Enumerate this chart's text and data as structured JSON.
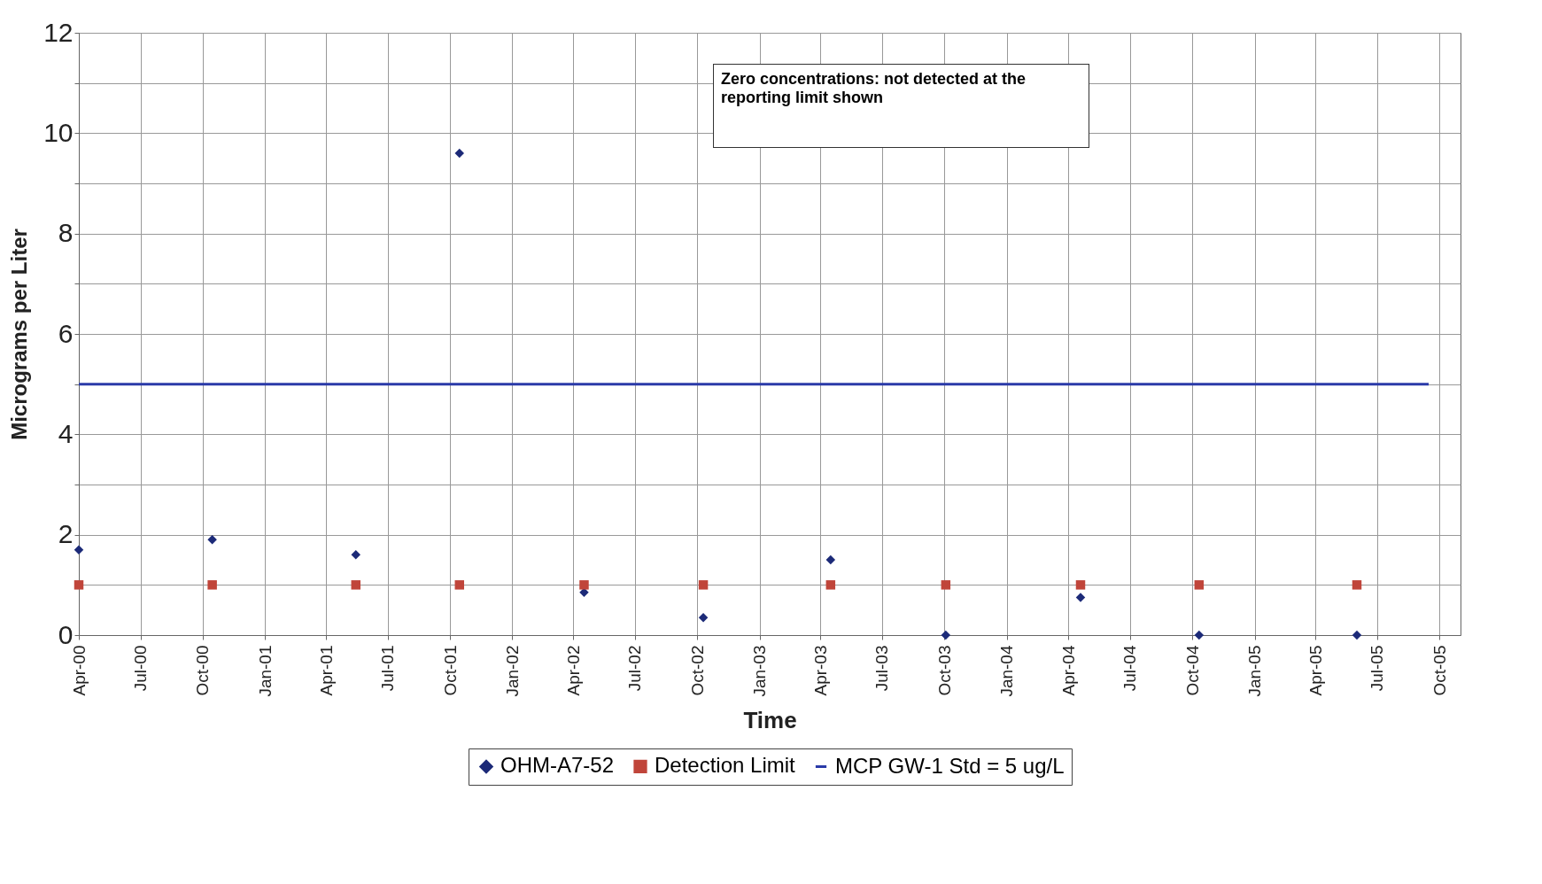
{
  "chart_data": {
    "type": "scatter",
    "xlabel": "Time",
    "ylabel": "Micrograms per Liter",
    "annotations": [
      "Zero concentrations: not detected at the reporting limit shown"
    ],
    "x": [
      "2000-04-01",
      "2000-10-15",
      "2001-05-15",
      "2001-10-15",
      "2002-04-17",
      "2002-10-10",
      "2003-04-16",
      "2003-10-03",
      "2004-04-19",
      "2004-10-11",
      "2005-06-01"
    ],
    "series": [
      {
        "name": "OHM-A7-52",
        "color": "#1c2a78",
        "marker": "diamond",
        "values": [
          1.7,
          1.9,
          1.6,
          9.6,
          0.85,
          0.35,
          1.5,
          0,
          0.75,
          0,
          0
        ]
      },
      {
        "name": "Detection Limit",
        "color": "#c0453a",
        "marker": "square",
        "values": [
          1,
          1,
          1,
          1,
          1,
          1,
          1,
          1,
          1,
          1,
          1
        ]
      },
      {
        "name": "MCP GW-1 Std = 5 ug/L",
        "type": "line",
        "color": "#2a3aa8",
        "marker": "none",
        "x": [
          "2000-04-01",
          "2005-09-15"
        ],
        "values": [
          5,
          5
        ]
      }
    ],
    "xlim": [
      "2000-04-01",
      "2005-11-01"
    ],
    "xticks": [
      {
        "value": "2000-04-01",
        "label": "Apr-00"
      },
      {
        "value": "2000-07-01",
        "label": "Jul-00"
      },
      {
        "value": "2000-10-01",
        "label": "Oct-00"
      },
      {
        "value": "2001-01-01",
        "label": "Jan-01"
      },
      {
        "value": "2001-04-01",
        "label": "Apr-01"
      },
      {
        "value": "2001-07-01",
        "label": "Jul-01"
      },
      {
        "value": "2001-10-01",
        "label": "Oct-01"
      },
      {
        "value": "2002-01-01",
        "label": "Jan-02"
      },
      {
        "value": "2002-04-01",
        "label": "Apr-02"
      },
      {
        "value": "2002-07-01",
        "label": "Jul-02"
      },
      {
        "value": "2002-10-01",
        "label": "Oct-02"
      },
      {
        "value": "2003-01-01",
        "label": "Jan-03"
      },
      {
        "value": "2003-04-01",
        "label": "Apr-03"
      },
      {
        "value": "2003-07-01",
        "label": "Jul-03"
      },
      {
        "value": "2003-10-01",
        "label": "Oct-03"
      },
      {
        "value": "2004-01-01",
        "label": "Jan-04"
      },
      {
        "value": "2004-04-01",
        "label": "Apr-04"
      },
      {
        "value": "2004-07-01",
        "label": "Jul-04"
      },
      {
        "value": "2004-10-01",
        "label": "Oct-04"
      },
      {
        "value": "2005-01-01",
        "label": "Jan-05"
      },
      {
        "value": "2005-04-01",
        "label": "Apr-05"
      },
      {
        "value": "2005-07-01",
        "label": "Jul-05"
      },
      {
        "value": "2005-10-01",
        "label": "Oct-05"
      }
    ],
    "ylim": [
      0,
      12
    ],
    "yticks": [
      0,
      {
        "value": 1,
        "label": null
      },
      2,
      {
        "value": 3,
        "label": null
      },
      4,
      {
        "value": 5,
        "label": null
      },
      6,
      {
        "value": 7,
        "label": null
      },
      8,
      {
        "value": 9,
        "label": null
      },
      10,
      {
        "value": 11,
        "label": null
      },
      12
    ],
    "grid": true,
    "legend": "bottom"
  }
}
